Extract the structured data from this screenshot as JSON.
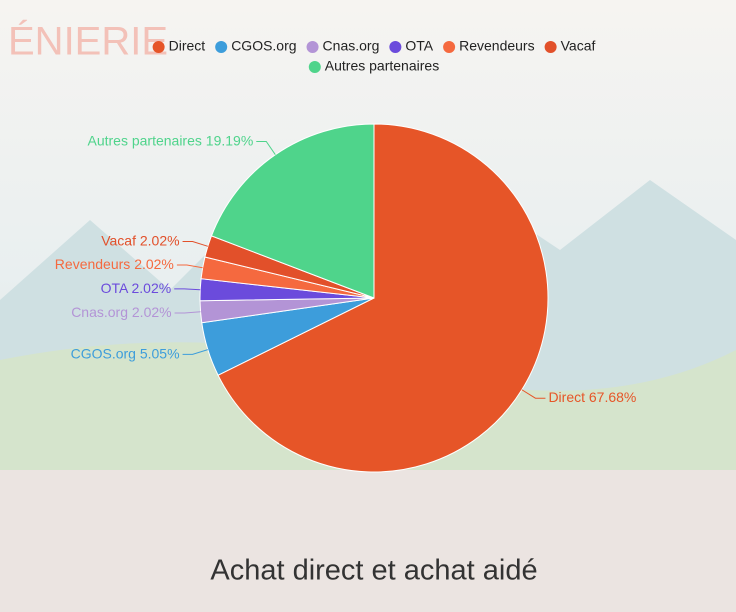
{
  "background": {
    "logo_text": "ÉNIERIE"
  },
  "chart_data": {
    "type": "pie",
    "title": "Achat direct et achat aidé",
    "categories": [
      "Direct",
      "CGOS.org",
      "Cnas.org",
      "OTA",
      "Revendeurs",
      "Vacaf",
      "Autres partenaires"
    ],
    "values": [
      67.68,
      5.05,
      2.02,
      2.02,
      2.02,
      2.02,
      19.19
    ],
    "value_labels": [
      "67.68%",
      "5.05%",
      "2.02%",
      "2.02%",
      "2.02%",
      "2.02%",
      "19.19%"
    ],
    "colors": [
      "#e65528",
      "#3d9ddb",
      "#b394d6",
      "#6b4bdc",
      "#f5693f",
      "#e2502a",
      "#4fd48b"
    ],
    "legend": "top"
  }
}
